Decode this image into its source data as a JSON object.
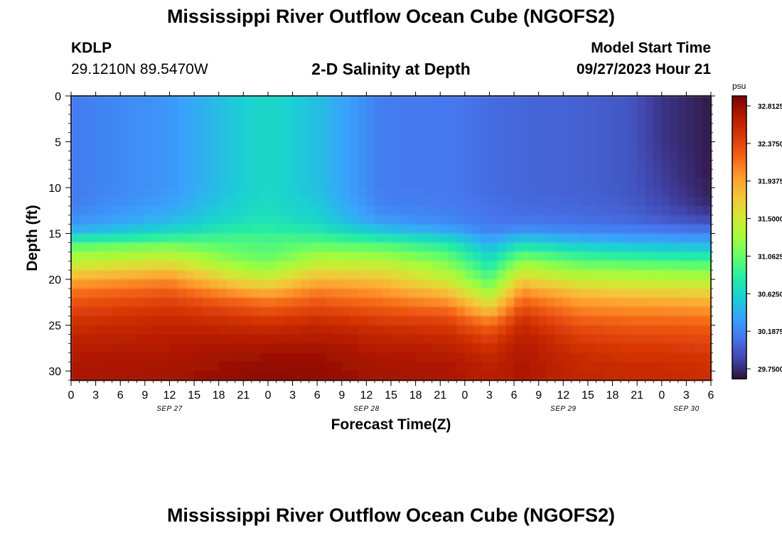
{
  "header": {
    "title": "Mississippi River Outflow Ocean Cube (NGOFS2)",
    "station": "KDLP",
    "coords": "29.1210N  89.5470W",
    "subtitle": "2-D Salinity at Depth",
    "model_start_label": "Model Start Time",
    "model_start_value": "09/27/2023 Hour 21"
  },
  "footer": {
    "title": "Mississippi River Outflow Ocean Cube (NGOFS2)"
  },
  "chart_data": {
    "type": "heatmap",
    "title": "2-D Salinity at Depth",
    "xlabel": "Forecast Time(Z)",
    "ylabel": "Depth (ft)",
    "x_ticks": [
      "0",
      "3",
      "6",
      "9",
      "12",
      "15",
      "18",
      "21",
      "0",
      "3",
      "6",
      "9",
      "12",
      "15",
      "18",
      "21",
      "0",
      "3",
      "6",
      "9",
      "12",
      "15",
      "18",
      "21",
      "0",
      "3",
      "6"
    ],
    "x_hours": [
      0,
      3,
      6,
      9,
      12,
      15,
      18,
      21,
      24,
      27,
      30,
      33,
      36,
      39,
      42,
      45,
      48,
      51,
      54,
      57,
      60,
      63,
      66,
      69,
      72,
      75,
      78
    ],
    "date_labels": [
      {
        "label": "SEP 27",
        "hour": 12
      },
      {
        "label": "SEP 28",
        "hour": 36
      },
      {
        "label": "SEP 29",
        "hour": 60
      },
      {
        "label": "SEP 30",
        "hour": 75
      }
    ],
    "y_ticks": [
      0,
      5,
      10,
      15,
      20,
      25,
      30
    ],
    "ylim": [
      0,
      31
    ],
    "xlim": [
      0,
      78
    ],
    "y_reversed": true,
    "colorbar": {
      "unit": "psu",
      "min": 29.75,
      "max": 32.8125,
      "ticks": [
        "32.8125",
        "32.3750",
        "31.9375",
        "31.5000",
        "31.0625",
        "30.6250",
        "30.1875",
        "29.7500"
      ],
      "colors": [
        "#30123b",
        "#4145ab",
        "#4675ed",
        "#39a2fc",
        "#1bcfd4",
        "#24eca6",
        "#61fc6c",
        "#a4fc3b",
        "#d1e834",
        "#f3c63a",
        "#fe9b2d",
        "#f36315",
        "#d93806",
        "#b11901",
        "#7a0402"
      ]
    },
    "profiles": {
      "depths_ft": [
        0,
        5,
        10,
        12,
        14,
        15,
        16,
        17,
        18,
        19,
        20,
        21,
        22,
        23,
        24,
        25,
        27,
        29,
        31
      ],
      "columns": [
        {
          "hour": 0,
          "values": [
            30.22,
            30.22,
            30.22,
            30.24,
            30.35,
            30.55,
            30.95,
            31.2,
            31.38,
            31.6,
            31.85,
            32.05,
            32.18,
            32.28,
            32.38,
            32.45,
            32.55,
            32.6,
            32.62
          ]
        },
        {
          "hour": 12,
          "values": [
            30.35,
            30.35,
            30.35,
            30.4,
            30.55,
            30.75,
            31.05,
            31.3,
            31.5,
            31.75,
            31.98,
            32.15,
            32.28,
            32.38,
            32.45,
            32.5,
            32.58,
            32.62,
            32.65
          ]
        },
        {
          "hour": 20,
          "values": [
            30.6,
            30.6,
            30.6,
            30.65,
            30.75,
            30.9,
            31.0,
            31.08,
            31.2,
            31.38,
            31.6,
            31.85,
            32.1,
            32.25,
            32.38,
            32.48,
            32.6,
            32.68,
            32.72
          ]
        },
        {
          "hour": 24,
          "values": [
            30.7,
            30.7,
            30.7,
            30.72,
            30.8,
            30.92,
            30.98,
            31.02,
            31.12,
            31.28,
            31.5,
            31.75,
            32.0,
            32.18,
            32.32,
            32.45,
            32.6,
            32.7,
            32.75
          ]
        },
        {
          "hour": 30,
          "values": [
            30.55,
            30.55,
            30.55,
            30.6,
            30.7,
            30.85,
            31.02,
            31.2,
            31.38,
            31.58,
            31.8,
            32.0,
            32.15,
            32.28,
            32.4,
            32.5,
            32.62,
            32.7,
            32.72
          ]
        },
        {
          "hour": 38,
          "values": [
            30.22,
            30.22,
            30.22,
            30.25,
            30.4,
            30.65,
            30.95,
            31.15,
            31.35,
            31.55,
            31.72,
            31.9,
            32.05,
            32.18,
            32.3,
            32.42,
            32.55,
            32.62,
            32.65
          ]
        },
        {
          "hour": 46,
          "values": [
            30.2,
            30.2,
            30.2,
            30.22,
            30.3,
            30.5,
            30.78,
            30.98,
            31.12,
            31.28,
            31.45,
            31.65,
            31.88,
            32.08,
            32.25,
            32.38,
            32.52,
            32.6,
            32.62
          ]
        },
        {
          "hour": 51,
          "values": [
            30.15,
            30.15,
            30.15,
            30.17,
            30.2,
            30.3,
            30.45,
            30.6,
            30.75,
            30.88,
            31.02,
            31.18,
            31.4,
            31.65,
            31.9,
            32.15,
            32.4,
            32.52,
            32.55
          ]
        },
        {
          "hour": 55,
          "values": [
            30.12,
            30.12,
            30.12,
            30.14,
            30.2,
            30.4,
            30.7,
            30.95,
            31.2,
            31.42,
            31.65,
            31.9,
            32.1,
            32.25,
            32.38,
            32.48,
            32.58,
            32.6,
            32.6
          ]
        },
        {
          "hour": 62,
          "values": [
            30.1,
            30.1,
            30.1,
            30.12,
            30.18,
            30.32,
            30.55,
            30.8,
            31.02,
            31.22,
            31.45,
            31.65,
            31.85,
            32.0,
            32.12,
            32.25,
            32.4,
            32.48,
            32.5
          ]
        },
        {
          "hour": 68,
          "values": [
            30.05,
            30.05,
            30.05,
            30.08,
            30.15,
            30.3,
            30.5,
            30.75,
            30.98,
            31.2,
            31.4,
            31.6,
            31.8,
            31.95,
            32.08,
            32.2,
            32.35,
            32.45,
            32.48
          ]
        },
        {
          "hour": 72,
          "values": [
            29.9,
            29.9,
            29.95,
            30.0,
            30.1,
            30.28,
            30.48,
            30.72,
            30.95,
            31.18,
            31.38,
            31.58,
            31.78,
            31.95,
            32.08,
            32.2,
            32.35,
            32.45,
            32.48
          ]
        },
        {
          "hour": 78,
          "values": [
            29.78,
            29.78,
            29.8,
            29.85,
            30.05,
            30.25,
            30.45,
            30.7,
            30.95,
            31.15,
            31.35,
            31.55,
            31.75,
            31.92,
            32.05,
            32.18,
            32.32,
            32.42,
            32.45
          ]
        }
      ]
    }
  }
}
